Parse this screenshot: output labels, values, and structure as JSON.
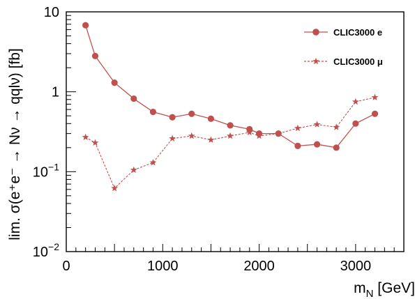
{
  "chart_data": {
    "type": "line",
    "xlabel": "m",
    "xlabel_sub": "N",
    "xlabel_unit": "[GeV]",
    "ylabel": "lim. σ(e⁺e⁻ → Nν → qqlν) [fb]",
    "xlim": [
      0,
      3500
    ],
    "ylim": [
      0.01,
      10
    ],
    "yscale": "log",
    "grid": false,
    "legend_position": "top-right",
    "x_ticks": [
      {
        "value": 0,
        "label": "0"
      },
      {
        "value": 1000,
        "label": "1000"
      },
      {
        "value": 2000,
        "label": "2000"
      },
      {
        "value": 3000,
        "label": "3000"
      }
    ],
    "y_ticks": [
      {
        "value": 10,
        "base": "10",
        "exp": ""
      },
      {
        "value": 1,
        "base": "1",
        "exp": ""
      },
      {
        "value": 0.1,
        "base": "10",
        "exp": "−1"
      },
      {
        "value": 0.01,
        "base": "10",
        "exp": "−2"
      }
    ],
    "series": [
      {
        "name": "CLIC3000 e",
        "color": "#c0504d",
        "marker": "circle",
        "line_style": "solid",
        "x": [
          200,
          300,
          500,
          700,
          900,
          1100,
          1300,
          1500,
          1700,
          1900,
          2000,
          2200,
          2400,
          2600,
          2800,
          3000,
          3200
        ],
        "y": [
          6.8,
          2.8,
          1.3,
          0.82,
          0.56,
          0.48,
          0.53,
          0.46,
          0.38,
          0.34,
          0.3,
          0.3,
          0.21,
          0.22,
          0.2,
          0.4,
          0.53
        ]
      },
      {
        "name": "CLIC3000 μ",
        "color": "#c0504d",
        "marker": "star",
        "line_style": "dashed",
        "x": [
          200,
          300,
          500,
          700,
          900,
          1100,
          1300,
          1500,
          1700,
          1900,
          2000,
          2200,
          2400,
          2600,
          2800,
          3000,
          3200
        ],
        "y": [
          0.27,
          0.23,
          0.062,
          0.105,
          0.13,
          0.26,
          0.28,
          0.25,
          0.28,
          0.31,
          0.28,
          0.3,
          0.35,
          0.39,
          0.36,
          0.75,
          0.85
        ]
      }
    ]
  }
}
